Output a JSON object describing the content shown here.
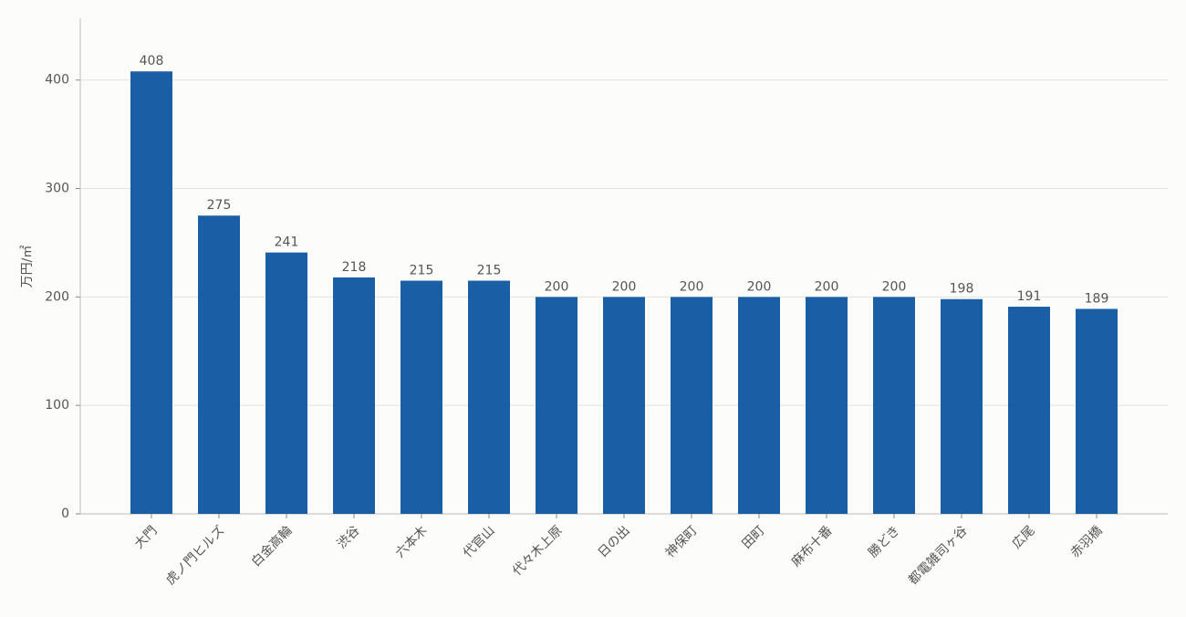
{
  "chart_data": {
    "type": "bar",
    "y_label": "万円/㎡",
    "categories": [
      "大門",
      "虎ノ門ヒルズ",
      "白金高輪",
      "渋谷",
      "六本木",
      "代官山",
      "代々木上原",
      "日の出",
      "神保町",
      "田町",
      "麻布十番",
      "勝どき",
      "都電雑司ヶ谷",
      "広尾",
      "赤羽橋"
    ],
    "values": [
      408,
      275,
      241,
      218,
      215,
      215,
      200,
      200,
      200,
      200,
      200,
      200,
      198,
      191,
      189
    ],
    "color": "#1a5fa6",
    "ylim": [
      0,
      457
    ],
    "yticks": [
      0,
      100,
      200,
      300,
      400
    ],
    "grid": true
  }
}
